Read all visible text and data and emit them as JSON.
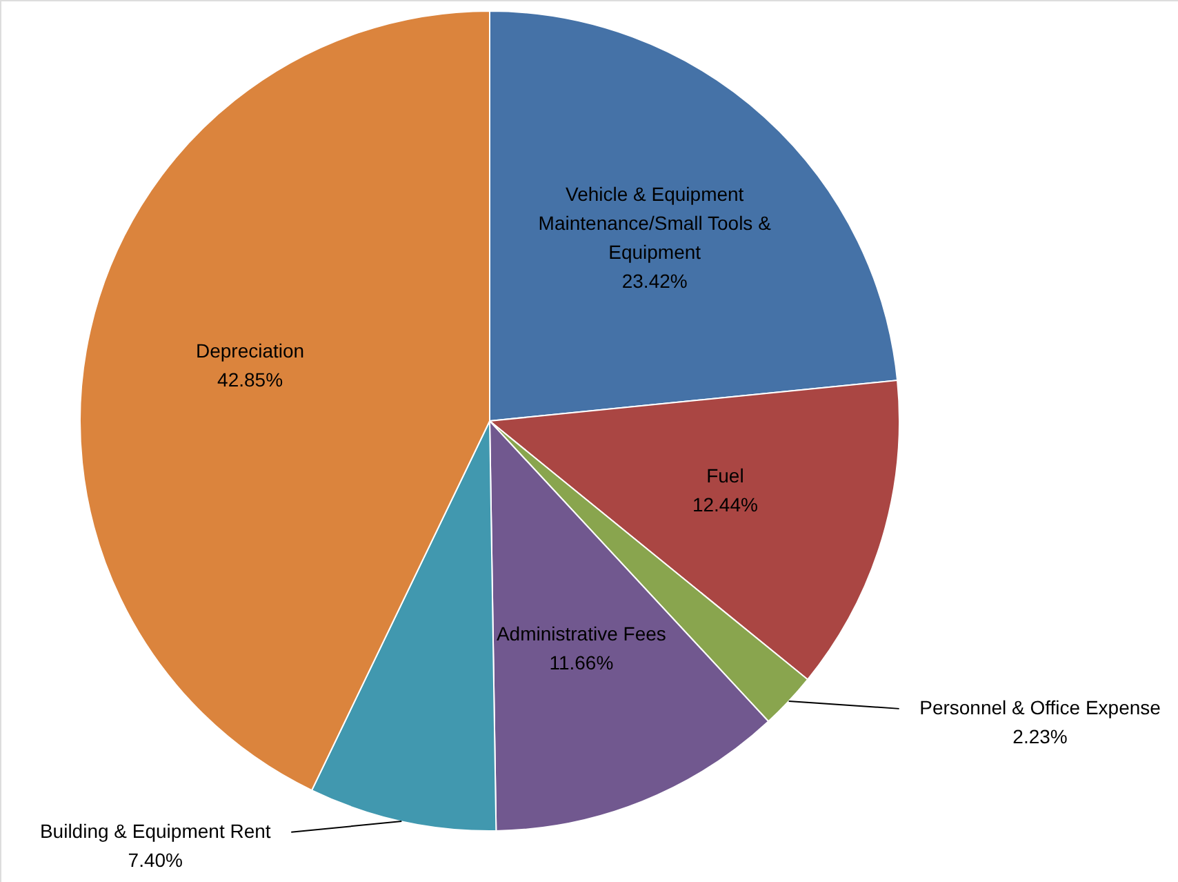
{
  "chart_data": {
    "type": "pie",
    "categories": [
      "Vehicle & Equipment Maintenance/Small Tools & Equipment",
      "Fuel",
      "Personnel & Office Expense",
      "Administrative Fees",
      "Building & Equipment Rent",
      "Depreciation"
    ],
    "values": [
      23.42,
      12.44,
      2.23,
      11.66,
      7.4,
      42.85
    ],
    "colors": [
      "#4572a7",
      "#aa4643",
      "#89a54e",
      "#71588f",
      "#4198af",
      "#db843d"
    ],
    "value_labels": [
      "23.42%",
      "12.44%",
      "2.23%",
      "11.66%",
      "7.40%",
      "42.85%"
    ]
  }
}
